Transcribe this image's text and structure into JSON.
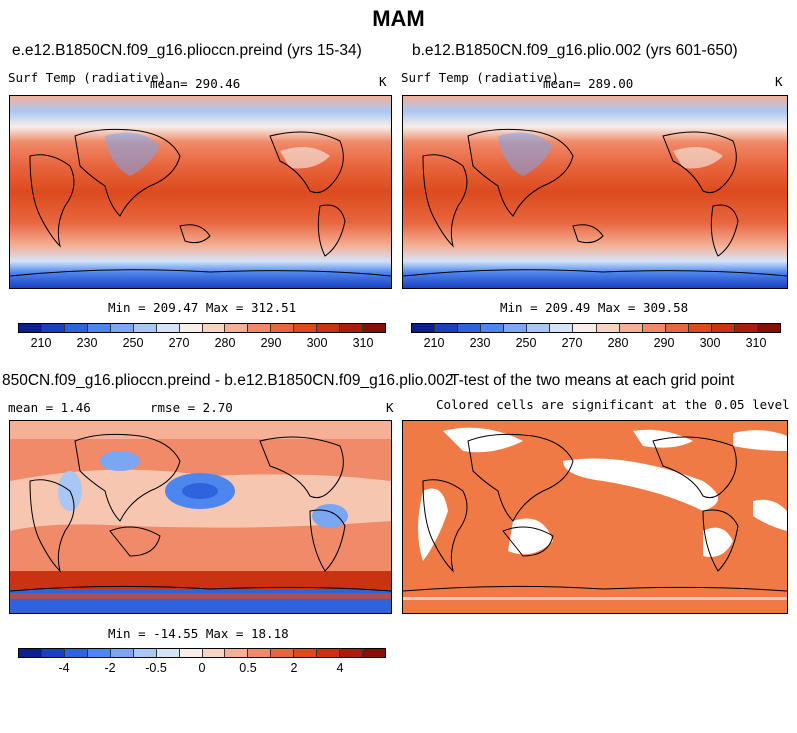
{
  "title": "MAM",
  "panels": [
    {
      "title": "e.e12.B1850CN.f09_g16.plioccn.preind (yrs 15-34)",
      "variable": "Surf Temp (radiative)",
      "mean_label": "mean= 290.46",
      "unit": "K",
      "minmax": "Min = 209.47  Max = 312.51"
    },
    {
      "title": "b.e12.B1850CN.f09_g16.plio.002 (yrs 601-650)",
      "variable": "Surf Temp (radiative)",
      "mean_label": "mean= 289.00",
      "unit": "K",
      "minmax": "Min = 209.49  Max = 309.58"
    },
    {
      "title": "850CN.f09_g16.plioccn.preind - b.e12.B1850CN.f09_g16.plio.002",
      "mean_label": "mean =    1.46",
      "rmse_label": "rmse =    2.70",
      "unit": "K",
      "minmax": "Min = -14.55  Max =  18.18"
    },
    {
      "title": "T-test of the two means at each grid point",
      "subtitle": "Colored cells are significant at the 0.05 level"
    }
  ],
  "colorbar_abs": {
    "colors": [
      "#0c1f8c",
      "#1a3fbf",
      "#2f63dd",
      "#4d86ee",
      "#7aa6f2",
      "#a9c7f5",
      "#d4e3f8",
      "#f7eee9",
      "#f8d4c2",
      "#f5b096",
      "#f08a68",
      "#e8663f",
      "#dd4a1e",
      "#c93312",
      "#a81d0b",
      "#861005"
    ],
    "ticks": [
      "210",
      "230",
      "250",
      "270",
      "280",
      "290",
      "300",
      "310"
    ]
  },
  "colorbar_diff": {
    "colors": [
      "#0c1f8c",
      "#1a3fbf",
      "#2f63dd",
      "#4d86ee",
      "#7aa6f2",
      "#a9c7f5",
      "#d4e3f8",
      "#f7eee9",
      "#f8d4c2",
      "#f5b096",
      "#f08a68",
      "#e8663f",
      "#dd4a1e",
      "#c93312",
      "#a81d0b",
      "#861005"
    ],
    "ticks": [
      "-4",
      "-2",
      "-0.5",
      "0",
      "0.5",
      "2",
      "4"
    ]
  },
  "significance_color": "#ef7a45"
}
